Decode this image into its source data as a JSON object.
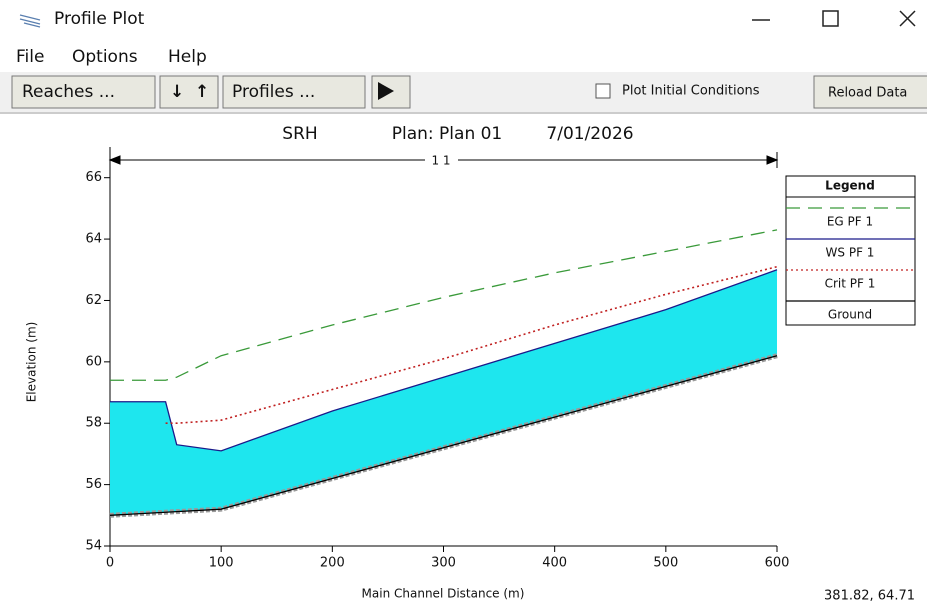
{
  "window": {
    "title": "Profile Plot",
    "menu": [
      "File",
      "Options",
      "Help"
    ]
  },
  "toolbar": {
    "reaches": "Reaches ...",
    "profiles": "Profiles ...",
    "checkbox": "Plot Initial Conditions",
    "reload": "Reload Data"
  },
  "status": "381.82, 64.71",
  "chart_data": {
    "type": "line",
    "title": "SRH",
    "plan": "Plan: Plan 01",
    "date": "7/01/2026",
    "reach_label": "1 1",
    "x_label": "Main Channel Distance (m)",
    "y_label": "Elevation (m)",
    "legend_title": "Legend",
    "legend": "right",
    "x": [
      0,
      50,
      60,
      100,
      200,
      300,
      400,
      500,
      600
    ],
    "series": [
      {
        "name": "EG  PF 1",
        "color": "#3a9a3a",
        "line_style": "dashed",
        "values": [
          59.4,
          59.4,
          59.5,
          60.2,
          61.2,
          62.1,
          62.9,
          63.6,
          64.3
        ]
      },
      {
        "name": "WS  PF 1",
        "color": "#1a1a8a",
        "line_style": "solid",
        "values": [
          58.7,
          58.7,
          57.3,
          57.1,
          58.4,
          59.5,
          60.6,
          61.7,
          63.0
        ]
      },
      {
        "name": "Crit  PF 1",
        "color": "#c02020",
        "line_style": "dotted",
        "values": [
          null,
          58.0,
          58.0,
          58.1,
          59.1,
          60.1,
          61.2,
          62.2,
          63.1
        ]
      },
      {
        "name": "Ground",
        "color": "#000000",
        "line_style": "solid",
        "values": [
          55.0,
          55.1,
          55.12,
          55.2,
          56.2,
          57.2,
          58.2,
          59.2,
          60.2
        ]
      }
    ],
    "fill_color": "#1ee6ee",
    "xlim": [
      0,
      600
    ],
    "xticks": [
      0,
      100,
      200,
      300,
      400,
      500,
      600
    ],
    "ylim": [
      54,
      67
    ],
    "yticks": [
      54,
      56,
      58,
      60,
      62,
      64,
      66
    ]
  }
}
